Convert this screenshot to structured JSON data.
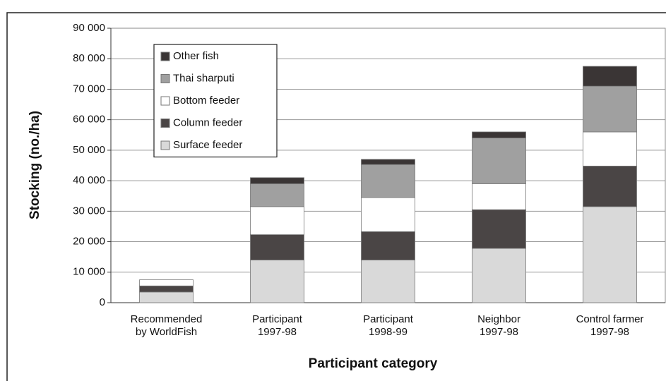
{
  "chart_data": {
    "type": "stacked_bar",
    "x_label": "Participant category",
    "y_label": "Stocking (no./ha)",
    "categories": [
      [
        "Recommended",
        "by WorldFish"
      ],
      [
        "Participant",
        "1997-98"
      ],
      [
        "Participant",
        "1998-99"
      ],
      [
        "Neighbor",
        "1997-98"
      ],
      [
        "Control farmer",
        "1997-98"
      ]
    ],
    "series": [
      {
        "name": "Surface feeder",
        "color": "#d9d9d9",
        "values": [
          3500,
          14000,
          14000,
          17800,
          31500
        ]
      },
      {
        "name": "Column feeder",
        "color": "#4a4545",
        "values": [
          2000,
          8300,
          9300,
          12700,
          13300
        ]
      },
      {
        "name": "Bottom feeder",
        "color": "#ffffff",
        "values": [
          2000,
          9200,
          11200,
          8500,
          11200
        ]
      },
      {
        "name": "Thai sharputi",
        "color": "#a0a0a0",
        "values": [
          0,
          7500,
          10800,
          15000,
          15000
        ]
      },
      {
        "name": "Other fish",
        "color": "#3a3535",
        "values": [
          0,
          2000,
          1700,
          2000,
          6500
        ]
      }
    ],
    "ylim": [
      0,
      90000
    ],
    "yticks": [
      0,
      {
        "value": 10000,
        "label": "10 000"
      },
      {
        "value": 20000,
        "label": "20 000"
      },
      {
        "value": 30000,
        "label": "30 000"
      },
      {
        "value": 40000,
        "label": "40 000"
      },
      {
        "value": 50000,
        "label": "50 000"
      },
      {
        "value": 60000,
        "label": "60 000"
      },
      {
        "value": 70000,
        "label": "70 000"
      },
      {
        "value": 80000,
        "label": "80 000"
      },
      {
        "value": 90000,
        "label": "90 000"
      }
    ],
    "grid": true,
    "legend": "upper left"
  }
}
